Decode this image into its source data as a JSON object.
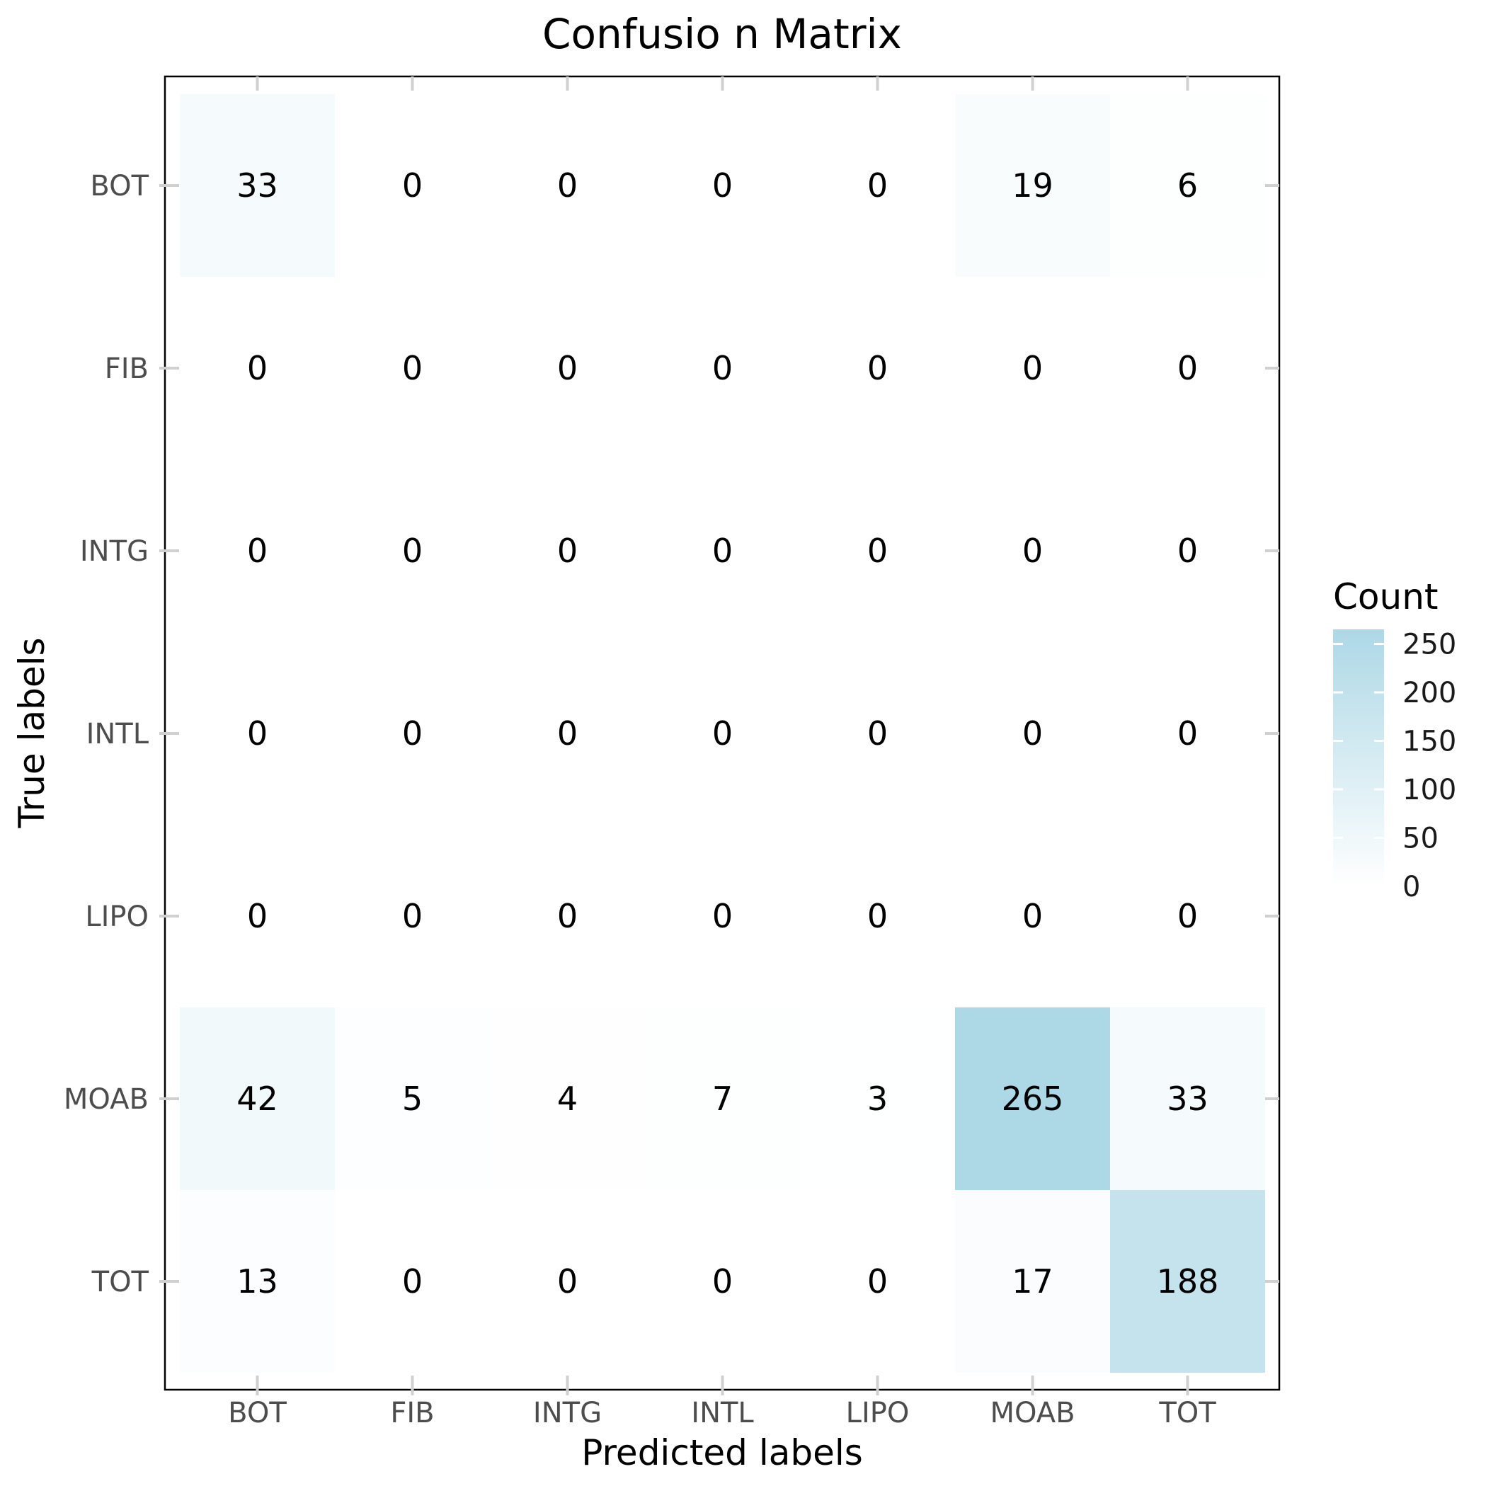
{
  "chart_data": {
    "type": "heatmap",
    "title": "Confusio  n Matrix",
    "xlabel": "Predicted labels",
    "ylabel": "True labels",
    "x_categories": [
      "BOT",
      "FIB",
      "INTG",
      "INTL",
      "LIPO",
      "MOAB",
      "TOT"
    ],
    "y_categories": [
      "BOT",
      "FIB",
      "INTG",
      "INTL",
      "LIPO",
      "MOAB",
      "TOT"
    ],
    "values": [
      [
        33,
        0,
        0,
        0,
        0,
        19,
        6
      ],
      [
        0,
        0,
        0,
        0,
        0,
        0,
        0
      ],
      [
        0,
        0,
        0,
        0,
        0,
        0,
        0
      ],
      [
        0,
        0,
        0,
        0,
        0,
        0,
        0
      ],
      [
        0,
        0,
        0,
        0,
        0,
        0,
        0
      ],
      [
        42,
        5,
        4,
        7,
        3,
        265,
        33
      ],
      [
        13,
        0,
        0,
        0,
        0,
        17,
        188
      ]
    ],
    "legend": {
      "title": "Count",
      "ticks": [
        0,
        50,
        100,
        150,
        200,
        250
      ],
      "range": [
        0,
        265
      ],
      "placement": "right"
    },
    "colors": {
      "low": "#ffffff",
      "high": "#add8e6"
    },
    "grid": false
  }
}
